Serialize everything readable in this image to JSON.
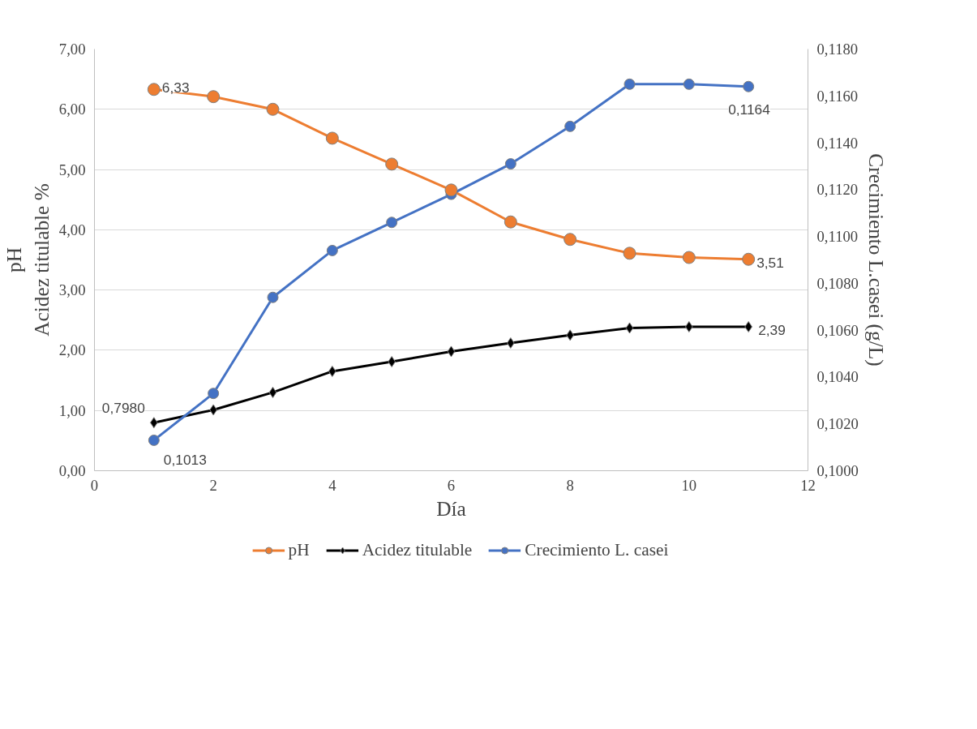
{
  "chart_data": {
    "type": "line",
    "xlabel": "Día",
    "ylabel": "pH\nAcidez titulable %",
    "y2label": "Crecimiento L.casei (g/L)",
    "x": [
      1,
      2,
      3,
      4,
      5,
      6,
      7,
      8,
      9,
      10,
      11
    ],
    "series": [
      {
        "name": "pH",
        "color": "#ed7d31",
        "marker": "circle",
        "values": [
          6.33,
          6.21,
          6.0,
          5.52,
          5.09,
          4.66,
          4.13,
          3.84,
          3.61,
          3.54,
          3.51
        ],
        "value_labels": [
          "6,33",
          null,
          null,
          null,
          null,
          null,
          null,
          null,
          null,
          null,
          "3,51"
        ]
      },
      {
        "name": "Acidez titulable",
        "color": "#000000",
        "marker": "diamond",
        "values": [
          0.798,
          1.01,
          1.3,
          1.65,
          1.81,
          1.98,
          2.12,
          2.25,
          2.37,
          2.39,
          2.39
        ],
        "value_labels": [
          "0,7980",
          null,
          null,
          null,
          null,
          null,
          null,
          null,
          null,
          null,
          "2,39"
        ]
      },
      {
        "name": "Crecimiento L. casei",
        "color": "#4472c4",
        "marker": "circle",
        "axis": "y2",
        "values": [
          0.1013,
          0.1033,
          0.1074,
          0.1094,
          0.1106,
          0.1118,
          0.1131,
          0.1147,
          0.1165,
          0.1165,
          0.1164
        ],
        "value_labels": [
          "0,1013",
          null,
          null,
          null,
          null,
          null,
          null,
          null,
          null,
          null,
          "0,1164"
        ]
      }
    ],
    "xlim": [
      0,
      12
    ],
    "xticks": [
      0,
      2,
      4,
      6,
      8,
      10,
      12
    ],
    "ylim": [
      0,
      7
    ],
    "yticks": [
      {
        "value": 0,
        "label": "0,00"
      },
      {
        "value": 1,
        "label": "1,00"
      },
      {
        "value": 2,
        "label": "2,00"
      },
      {
        "value": 3,
        "label": "3,00"
      },
      {
        "value": 4,
        "label": "4,00"
      },
      {
        "value": 5,
        "label": "5,00"
      },
      {
        "value": 6,
        "label": "6,00"
      },
      {
        "value": 7,
        "label": "7,00"
      }
    ],
    "y2lim": [
      0.1,
      0.118
    ],
    "y2ticks": [
      {
        "value": 0.1,
        "label": "0,1000"
      },
      {
        "value": 0.102,
        "label": "0,1020"
      },
      {
        "value": 0.104,
        "label": "0,1040"
      },
      {
        "value": 0.106,
        "label": "0,1060"
      },
      {
        "value": 0.108,
        "label": "0,1080"
      },
      {
        "value": 0.11,
        "label": "0,1100"
      },
      {
        "value": 0.112,
        "label": "0,1120"
      },
      {
        "value": 0.114,
        "label": "0,1140"
      },
      {
        "value": 0.116,
        "label": "0,1160"
      },
      {
        "value": 0.118,
        "label": "0,1180"
      }
    ],
    "grid": "y",
    "legend": "bottom",
    "line_style": "solid"
  }
}
